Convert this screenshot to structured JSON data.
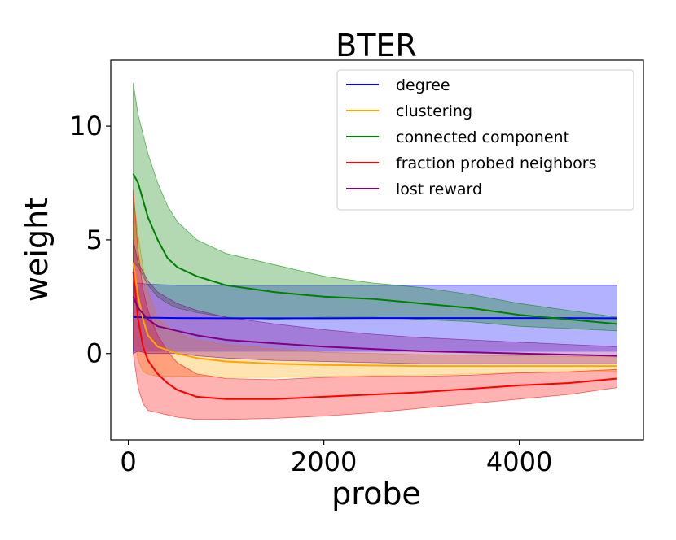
{
  "chart_data": {
    "type": "line",
    "title": "BTER",
    "xlabel": "probe",
    "ylabel": "weight",
    "xlim": [
      -180,
      5270
    ],
    "ylim": [
      -3.8,
      12.9
    ],
    "xticks": [
      0,
      2000,
      4000
    ],
    "yticks": [
      0,
      5,
      10
    ],
    "xtick_labels": [
      "0",
      "2000",
      "4000"
    ],
    "ytick_labels": [
      "0",
      "5",
      "10"
    ],
    "legend_position": "top-right",
    "shaded_band": "mean ± std",
    "series": [
      {
        "name": "degree",
        "color": "#0000ff",
        "x": [
          50,
          100,
          200,
          500,
          1000,
          1500,
          2000,
          2500,
          3000,
          3500,
          4000,
          4500,
          5000
        ],
        "mean": [
          1.6,
          1.6,
          1.58,
          1.56,
          1.55,
          1.55,
          1.55,
          1.56,
          1.56,
          1.56,
          1.56,
          1.56,
          1.55
        ],
        "lower": [
          0.1,
          0.1,
          0.1,
          0.1,
          0.1,
          0.1,
          0.1,
          0.1,
          0.1,
          0.1,
          0.1,
          0.1,
          0.1
        ],
        "upper": [
          3.1,
          3.1,
          3.05,
          3.0,
          3.0,
          3.0,
          3.0,
          3.0,
          3.0,
          3.0,
          3.0,
          3.0,
          3.0
        ]
      },
      {
        "name": "clustering",
        "color": "#ffa500",
        "x": [
          50,
          100,
          150,
          200,
          300,
          500,
          700,
          1000,
          1500,
          2000,
          3000,
          4000,
          5000
        ],
        "mean": [
          4.0,
          2.5,
          1.5,
          0.8,
          0.3,
          0.0,
          -0.2,
          -0.35,
          -0.45,
          -0.5,
          -0.55,
          -0.55,
          -0.55
        ],
        "lower": [
          1.0,
          -0.3,
          -0.8,
          -0.9,
          -1.0,
          -1.0,
          -1.0,
          -1.05,
          -1.05,
          -1.0,
          -0.95,
          -0.85,
          -0.8
        ],
        "upper": [
          7.0,
          5.2,
          3.8,
          2.8,
          1.5,
          0.9,
          0.6,
          0.4,
          0.2,
          0.05,
          -0.05,
          -0.1,
          -0.15
        ]
      },
      {
        "name": "connected component",
        "color": "#008000",
        "x": [
          50,
          100,
          200,
          300,
          400,
          500,
          600,
          700,
          1000,
          1500,
          2000,
          2500,
          3000,
          3500,
          4000,
          4500,
          5000
        ],
        "mean": [
          7.9,
          7.5,
          6.0,
          5.0,
          4.2,
          3.8,
          3.6,
          3.4,
          3.0,
          2.7,
          2.5,
          2.4,
          2.2,
          2.0,
          1.7,
          1.5,
          1.3
        ],
        "lower": [
          4.0,
          3.8,
          3.0,
          2.5,
          2.2,
          2.0,
          1.9,
          1.8,
          1.6,
          1.5,
          1.6,
          1.6,
          1.5,
          1.4,
          1.2,
          1.1,
          1.0
        ],
        "upper": [
          11.9,
          10.5,
          8.8,
          7.5,
          6.5,
          5.8,
          5.4,
          5.0,
          4.4,
          3.9,
          3.4,
          3.1,
          2.9,
          2.6,
          2.2,
          1.9,
          1.6
        ]
      },
      {
        "name": "fraction probed neighbors",
        "color": "#ff0000",
        "x": [
          50,
          100,
          150,
          200,
          300,
          400,
          500,
          700,
          1000,
          1500,
          2000,
          2500,
          3000,
          3500,
          4000,
          4500,
          5000
        ],
        "mean": [
          3.6,
          1.5,
          0.3,
          -0.3,
          -0.9,
          -1.3,
          -1.6,
          -1.9,
          -2.0,
          -2.0,
          -1.9,
          -1.8,
          -1.7,
          -1.55,
          -1.4,
          -1.3,
          -1.1
        ],
        "lower": [
          0.0,
          -1.5,
          -2.2,
          -2.5,
          -2.6,
          -2.7,
          -2.8,
          -2.9,
          -2.9,
          -2.85,
          -2.75,
          -2.6,
          -2.4,
          -2.2,
          -2.0,
          -1.8,
          -1.5
        ],
        "upper": [
          7.2,
          4.5,
          2.8,
          1.9,
          0.8,
          0.1,
          -0.4,
          -0.9,
          -1.1,
          -1.15,
          -1.05,
          -1.0,
          -1.0,
          -0.95,
          -0.85,
          -0.8,
          -0.7
        ]
      },
      {
        "name": "lost reward",
        "color": "#800080",
        "x": [
          50,
          100,
          200,
          300,
          500,
          700,
          1000,
          1500,
          2000,
          2500,
          3000,
          3500,
          4000,
          4500,
          5000
        ],
        "mean": [
          2.5,
          2.0,
          1.5,
          1.2,
          1.0,
          0.8,
          0.6,
          0.45,
          0.3,
          0.2,
          0.1,
          0.05,
          0.0,
          -0.05,
          -0.1
        ],
        "lower": [
          0.0,
          0.1,
          0.0,
          0.0,
          0.0,
          -0.1,
          -0.2,
          -0.3,
          -0.35,
          -0.4,
          -0.45,
          -0.45,
          -0.45,
          -0.45,
          -0.45
        ],
        "upper": [
          5.0,
          4.0,
          3.2,
          2.7,
          2.2,
          1.9,
          1.6,
          1.3,
          1.05,
          0.85,
          0.7,
          0.6,
          0.5,
          0.4,
          0.3
        ]
      }
    ]
  }
}
